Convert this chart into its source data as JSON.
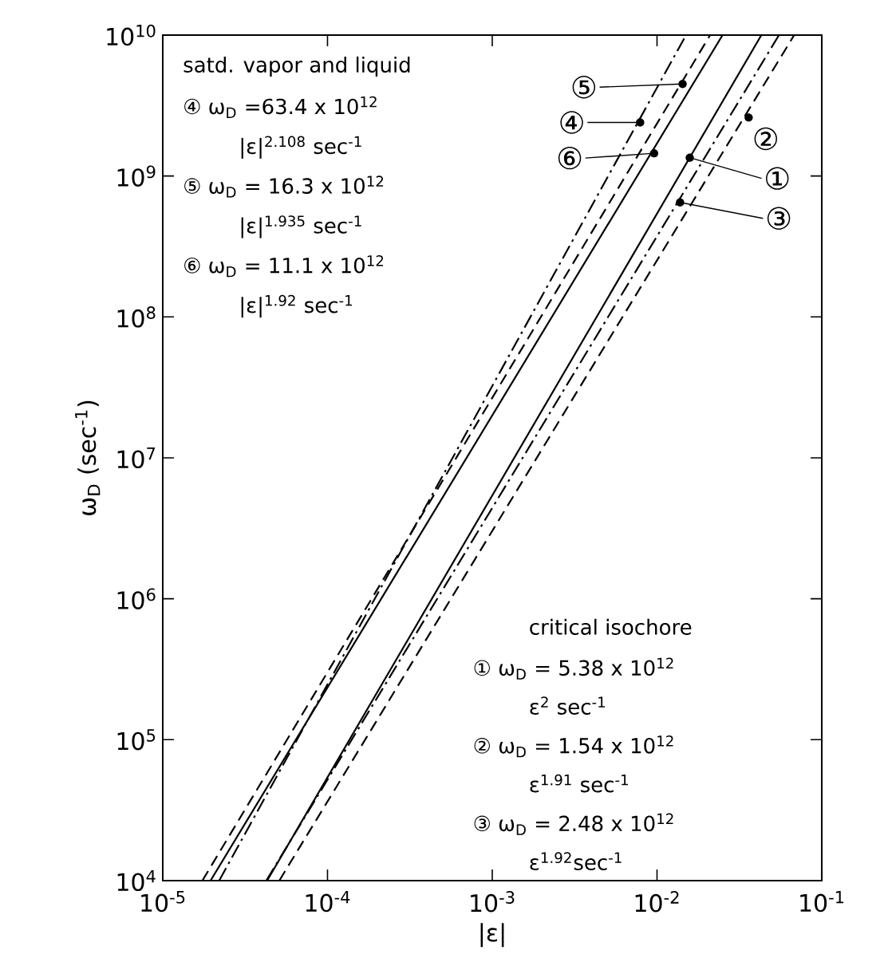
{
  "chart_data": {
    "type": "line",
    "xlabel": "|ε|",
    "ylabel": "ω$_{D}$ (sec$^{-1}$)",
    "log": "xy",
    "xlim": [
      1e-05,
      0.1
    ],
    "ylim": [
      10000,
      10000000000
    ],
    "xticks": [
      {
        "value": 1e-05,
        "label": "10$^{-5}$"
      },
      {
        "value": 0.0001,
        "label": "10$^{-4}$"
      },
      {
        "value": 0.001,
        "label": "10$^{-3}$"
      },
      {
        "value": 0.01,
        "label": "10$^{-2}$"
      },
      {
        "value": 0.1,
        "label": "10$^{-1}$"
      }
    ],
    "yticks": [
      {
        "value": 10000,
        "label": "10$^{4}$"
      },
      {
        "value": 100000,
        "label": "10$^{5}$"
      },
      {
        "value": 1000000,
        "label": "10$^{6}$"
      },
      {
        "value": 10000000,
        "label": "10$^{7}$"
      },
      {
        "value": 100000000,
        "label": "10$^{8}$"
      },
      {
        "value": 1000000000,
        "label": "10$^{9}$"
      },
      {
        "value": 10000000000,
        "label": "10$^{10}$"
      }
    ],
    "series": [
      {
        "color": "#000000",
        "line_style": "dashed",
        "x": [
          1.74e-05,
          0.021
        ],
        "values": [
          10000,
          10000000000
        ]
      },
      {
        "color": "#000000",
        "line_style": "solid",
        "x": [
          1.95e-05,
          0.025
        ],
        "values": [
          10000,
          10000000000
        ]
      },
      {
        "color": "#000000",
        "line_style": "dashdot",
        "x": [
          2.2e-05,
          0.015
        ],
        "values": [
          10000,
          10000000000
        ]
      },
      {
        "color": "#000000",
        "line_style": "solid",
        "x": [
          4.3e-05,
          0.043
        ],
        "values": [
          10000,
          10000000000
        ]
      },
      {
        "color": "#000000",
        "line_style": "dashdot",
        "x": [
          4.25e-05,
          0.055
        ],
        "values": [
          10000,
          10000000000
        ]
      },
      {
        "color": "#000000",
        "line_style": "dashed",
        "x": [
          5.1e-05,
          0.068
        ],
        "values": [
          10000,
          10000000000
        ]
      }
    ],
    "annotations": [
      "satd. vapor and liquid",
      "④ ω$_{D}$ =63.4 x 10$^{12}$",
      "|ε|$^{2.108}$ sec$^{-1}$",
      "⑤ ω$_{D}$ = 16.3 x 10$^{12}$",
      "|ε|$^{1.935}$ sec$^{-1}$",
      "⑥ ω$_{D}$ = 11.1 x 10$^{12}$",
      "|ε|$^{1.92}$ sec$^{-1}$",
      "critical isochore",
      "① ω$_{D}$ = 5.38 x 10$^{12}$",
      "ε$^{2}$ sec$^{-1}$",
      "② ω$_{D}$ = 1.54 x 10$^{12}$",
      "ε$^{1.91}$ sec$^{-1}$",
      "③ ω$_{D}$ = 2.48 x 10$^{12}$",
      "ε$^{1.92}$sec$^{-1}$",
      {
        "text": "⑤",
        "x": 0.0143,
        "y": 4500000000
      },
      {
        "text": "④",
        "x": 0.0079,
        "y": 2400000000
      },
      {
        "text": "⑥",
        "x": 0.0096,
        "y": 1450000000
      },
      {
        "text": "①",
        "x": 0.0158,
        "y": 1350000000
      },
      {
        "text": "②",
        "x": 0.036,
        "y": 2600000000
      },
      {
        "text": "③",
        "x": 0.0138,
        "y": 650000000
      }
    ]
  }
}
